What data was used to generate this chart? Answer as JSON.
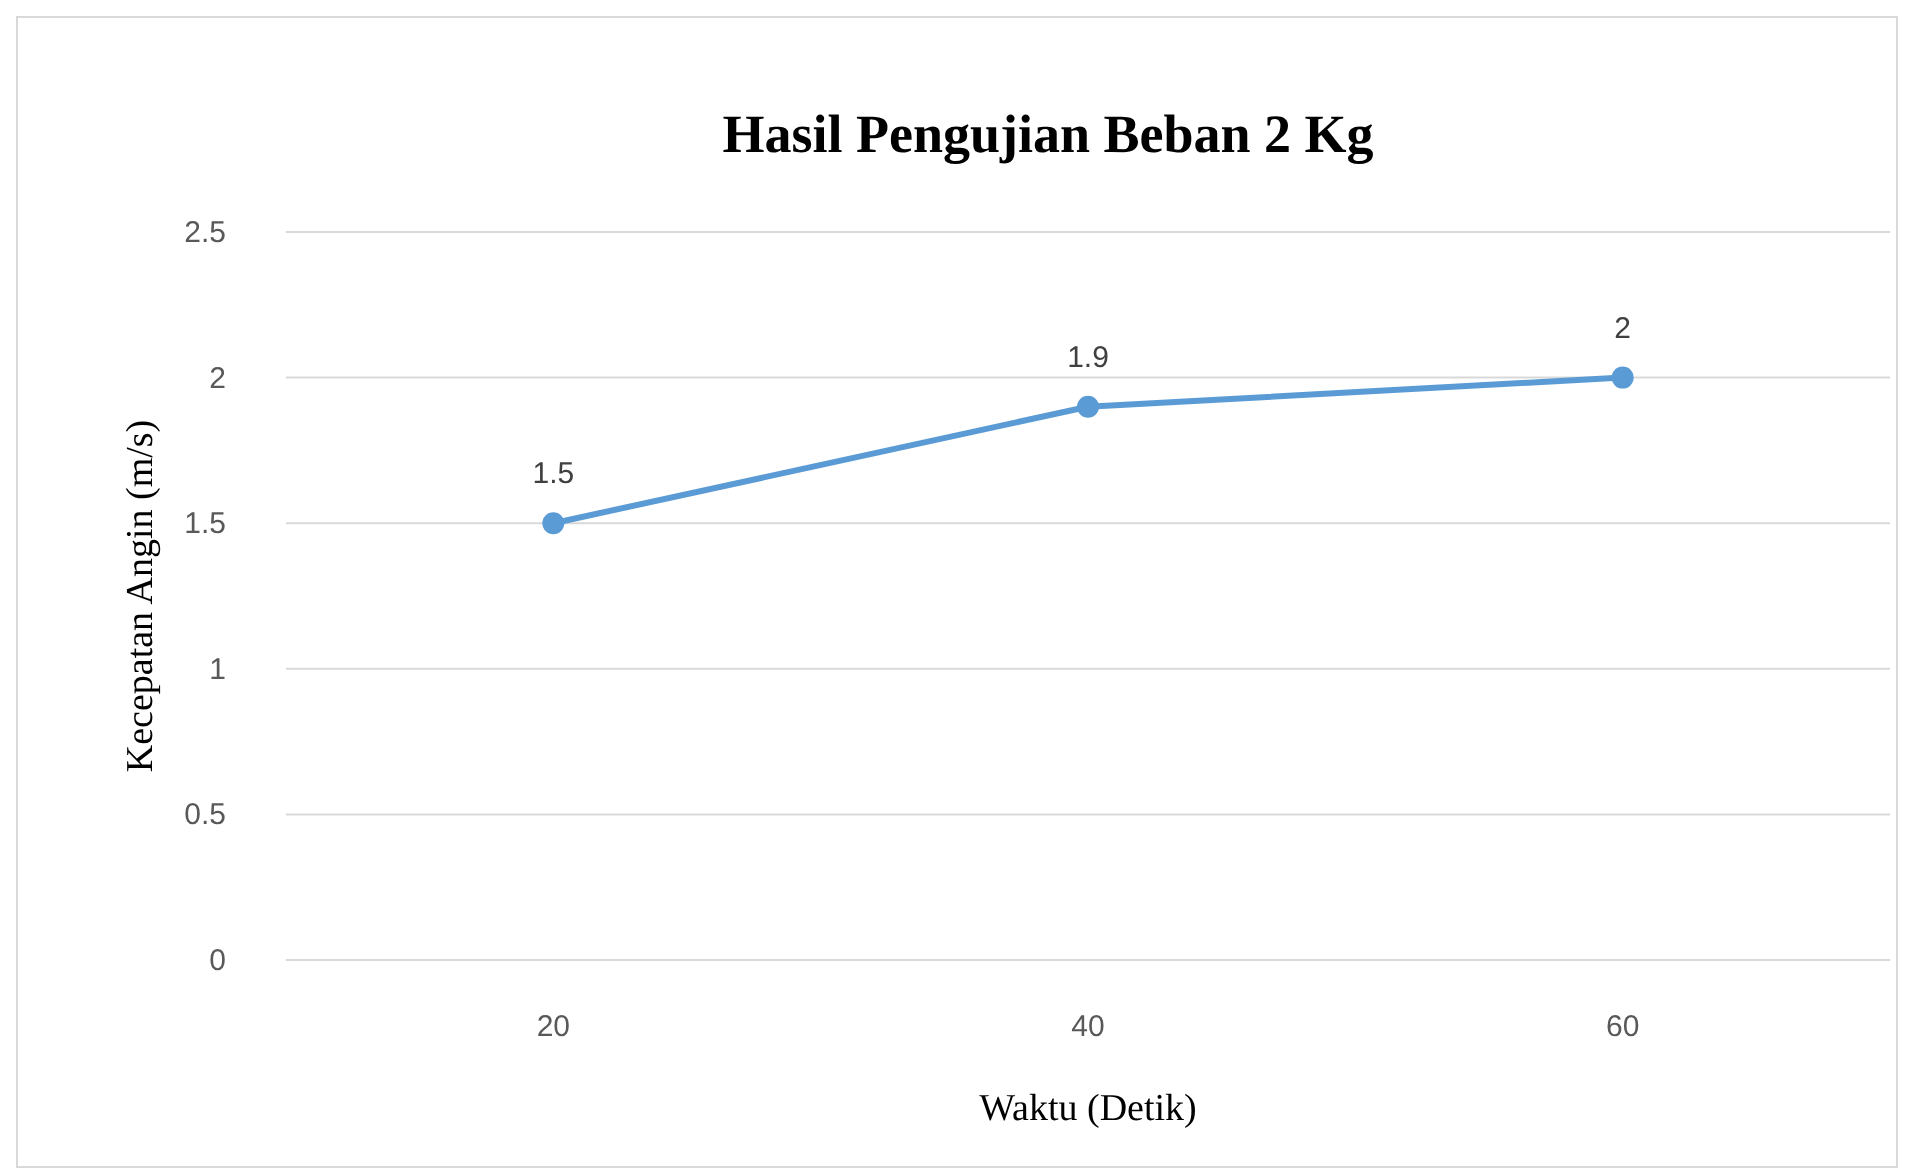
{
  "chart_data": {
    "type": "line",
    "title": "Hasil Pengujian Beban 2 Kg",
    "xlabel": "Waktu (Detik)",
    "ylabel": "Kecepatan Angin (m/s)",
    "categories": [
      "20",
      "40",
      "60"
    ],
    "series": [
      {
        "color": "#5b9bd5",
        "values": [
          1.5,
          1.9,
          2
        ]
      }
    ],
    "ylim": [
      0,
      2.5
    ],
    "yticks": [
      0,
      {
        "value": 0.5,
        "label": "0.5"
      },
      1,
      {
        "value": 1.5,
        "label": "1.5"
      },
      2,
      {
        "value": 2.5,
        "label": "2.5"
      }
    ],
    "grid": "y",
    "marker": "circle",
    "line_style": "solid",
    "data_labels": true
  }
}
